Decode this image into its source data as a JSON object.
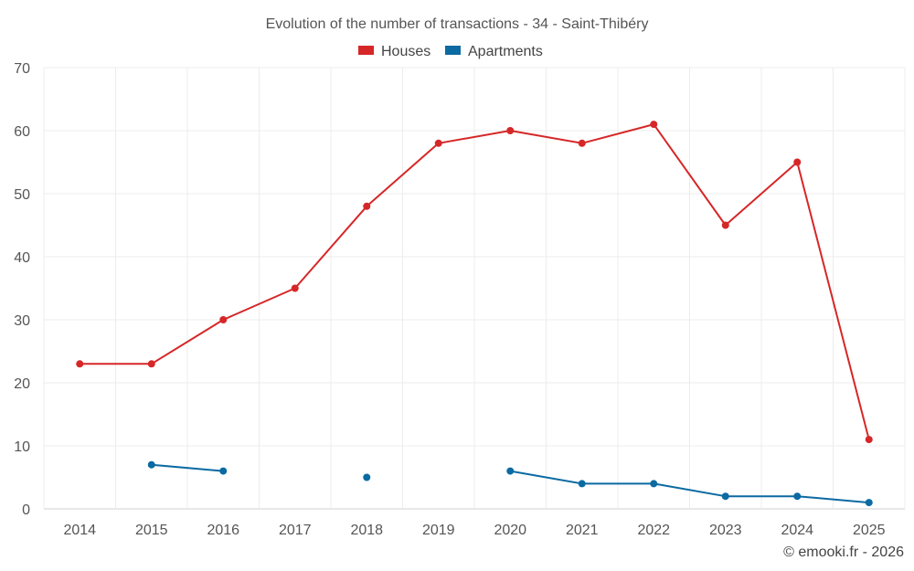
{
  "chart_data": {
    "type": "line",
    "title": "Evolution of the number of transactions - 34 - Saint-Thibéry",
    "categories": [
      "2014",
      "2015",
      "2016",
      "2017",
      "2018",
      "2019",
      "2020",
      "2021",
      "2022",
      "2023",
      "2024",
      "2025"
    ],
    "ylim": [
      0,
      70
    ],
    "yticks": [
      0,
      10,
      20,
      30,
      40,
      50,
      60,
      70
    ],
    "grid": true,
    "legend_position": "top-center",
    "series": [
      {
        "name": "Houses",
        "color": "#d62728",
        "values": [
          23,
          23,
          30,
          35,
          48,
          58,
          60,
          58,
          61,
          45,
          55,
          11
        ]
      },
      {
        "name": "Apartments",
        "color": "#0b6aa2",
        "values": [
          null,
          7,
          6,
          null,
          5,
          null,
          6,
          4,
          4,
          2,
          2,
          1
        ]
      }
    ]
  },
  "credit": "© emooki.fr - 2026"
}
